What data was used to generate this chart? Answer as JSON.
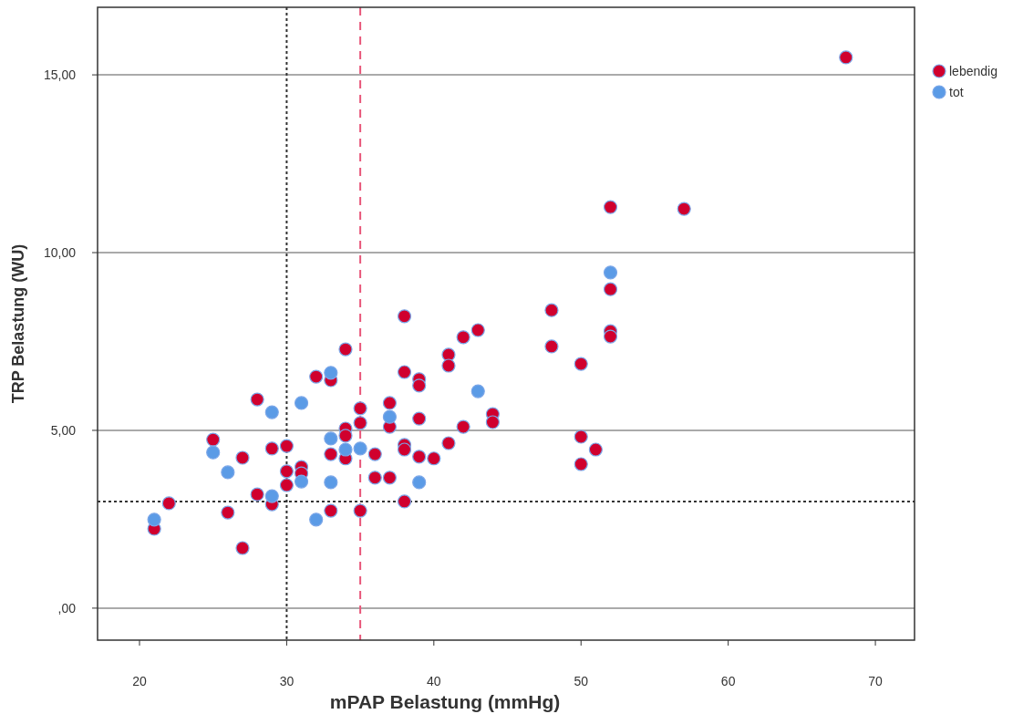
{
  "chart_data": {
    "type": "scatter",
    "xlabel": "mPAP Belastung (mmHg)",
    "ylabel": "TRP Belastung (WU)",
    "xlim": [
      17.15,
      72.66
    ],
    "ylim": [
      -0.9,
      16.9
    ],
    "xticks": [
      20,
      30,
      40,
      50,
      60,
      70
    ],
    "yticks": [
      {
        "value": 0,
        "label": ",00"
      },
      {
        "value": 5,
        "label": "5,00"
      },
      {
        "value": 10,
        "label": "10,00"
      },
      {
        "value": 15,
        "label": "15,00"
      }
    ],
    "grid": "y",
    "legend": "top right",
    "marker": "circle",
    "ref_lines": [
      {
        "axis": "x",
        "value": 30,
        "color": "#333333",
        "line_style": "dotted"
      },
      {
        "axis": "x",
        "value": 35,
        "color": "#e8577a",
        "line_style": "dashed"
      },
      {
        "axis": "y",
        "value": 3,
        "color": "#333333",
        "line_style": "dotted"
      }
    ],
    "series": [
      {
        "name": "lebendig",
        "color": "#d0002e",
        "x": [
          68,
          52,
          57,
          52,
          48,
          38,
          43,
          52,
          52,
          42,
          48,
          34,
          41,
          50,
          41,
          38,
          32,
          39,
          33,
          39,
          28,
          37,
          35,
          44,
          39,
          44,
          35,
          37,
          42,
          34,
          34,
          50,
          25,
          41,
          38,
          30,
          29,
          38,
          51,
          33,
          36,
          39,
          27,
          34,
          40,
          50,
          31,
          30,
          31,
          36,
          37,
          30,
          28,
          38,
          22,
          29,
          33,
          35,
          26,
          21,
          27
        ],
        "values": [
          15.49,
          11.28,
          11.23,
          8.97,
          8.38,
          8.21,
          7.82,
          7.79,
          7.64,
          7.62,
          7.36,
          7.28,
          7.13,
          6.87,
          6.82,
          6.64,
          6.51,
          6.44,
          6.41,
          6.26,
          5.87,
          5.77,
          5.62,
          5.46,
          5.33,
          5.23,
          5.21,
          5.1,
          5.1,
          5.05,
          4.85,
          4.82,
          4.74,
          4.64,
          4.59,
          4.56,
          4.49,
          4.46,
          4.46,
          4.33,
          4.33,
          4.26,
          4.23,
          4.21,
          4.21,
          4.05,
          3.97,
          3.85,
          3.79,
          3.67,
          3.67,
          3.46,
          3.2,
          3.0,
          2.95,
          2.92,
          2.74,
          2.74,
          2.69,
          2.23,
          1.69
        ]
      },
      {
        "name": "tot",
        "color": "#5b9be6",
        "x": [
          52,
          33,
          43,
          31,
          29,
          37,
          33,
          35,
          34,
          25,
          26,
          31,
          33,
          39,
          29,
          21,
          32
        ],
        "values": [
          9.44,
          6.62,
          6.1,
          5.77,
          5.51,
          5.38,
          4.77,
          4.49,
          4.46,
          4.38,
          3.82,
          3.56,
          3.54,
          3.54,
          3.15,
          2.49,
          2.49
        ]
      }
    ]
  }
}
